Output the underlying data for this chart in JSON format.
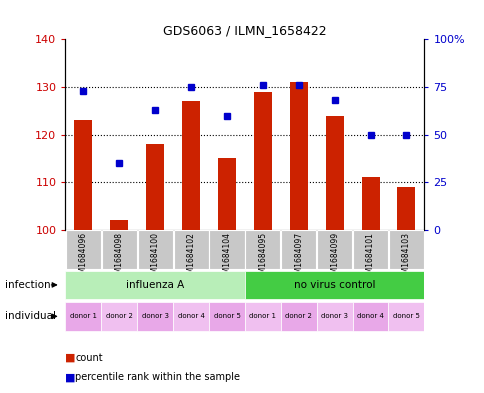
{
  "title": "GDS6063 / ILMN_1658422",
  "samples": [
    "GSM1684096",
    "GSM1684098",
    "GSM1684100",
    "GSM1684102",
    "GSM1684104",
    "GSM1684095",
    "GSM1684097",
    "GSM1684099",
    "GSM1684101",
    "GSM1684103"
  ],
  "count_values": [
    123,
    102,
    118,
    127,
    115,
    129,
    131,
    124,
    111,
    109
  ],
  "percentile_values": [
    73,
    35,
    63,
    75,
    60,
    76,
    76,
    68,
    50,
    50
  ],
  "count_base": 100,
  "ylim_left": [
    100,
    140
  ],
  "ylim_right": [
    0,
    100
  ],
  "yticks_left": [
    100,
    110,
    120,
    130,
    140
  ],
  "yticks_right": [
    0,
    25,
    50,
    75,
    100
  ],
  "yticklabels_right": [
    "0",
    "25",
    "50",
    "75",
    "100%"
  ],
  "infection_groups": [
    {
      "label": "influenza A",
      "start": 0,
      "end": 5,
      "color": "#B8EEB8"
    },
    {
      "label": "no virus control",
      "start": 5,
      "end": 10,
      "color": "#44CC44"
    }
  ],
  "individual_labels": [
    "donor 1",
    "donor 2",
    "donor 3",
    "donor 4",
    "donor 5",
    "donor 1",
    "donor 2",
    "donor 3",
    "donor 4",
    "donor 5"
  ],
  "ind_colors_alt": [
    "#E8A8E8",
    "#F0C0F0"
  ],
  "bar_color": "#CC2200",
  "dot_color": "#0000CC",
  "bar_width": 0.5,
  "sample_bg_color": "#C8C8C8",
  "label_color_left": "#CC0000",
  "label_color_right": "#0000CC",
  "infection_label": "infection",
  "individual_label": "individual",
  "legend_count": "count",
  "legend_pct": "percentile rank within the sample"
}
